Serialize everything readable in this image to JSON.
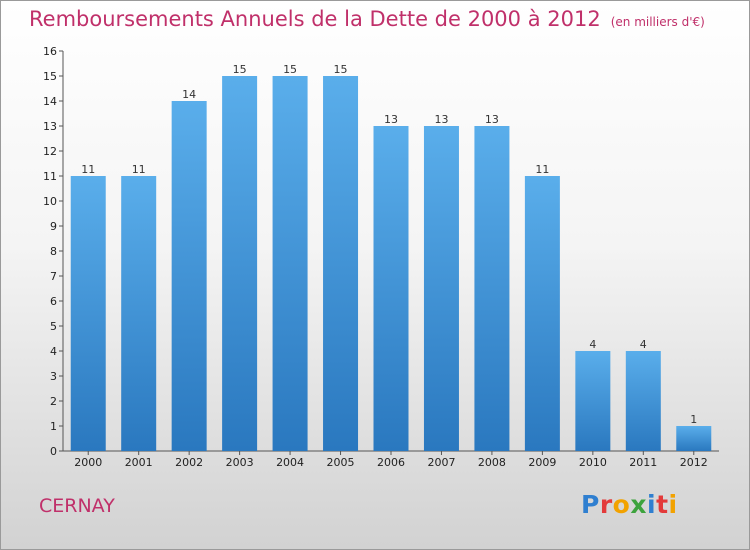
{
  "chart_data": {
    "type": "bar",
    "title": "Remboursements Annuels de la Dette de 2000 à 2012",
    "subtitle": "(en milliers d'€)",
    "categories": [
      "2000",
      "2001",
      "2002",
      "2003",
      "2004",
      "2005",
      "2006",
      "2007",
      "2008",
      "2009",
      "2010",
      "2011",
      "2012"
    ],
    "values": [
      11,
      11,
      14,
      15,
      15,
      15,
      13,
      13,
      13,
      11,
      4,
      4,
      1
    ],
    "ylim": [
      0,
      16
    ],
    "yticks": [
      0,
      1,
      2,
      3,
      4,
      5,
      6,
      7,
      8,
      9,
      10,
      11,
      12,
      13,
      14,
      15,
      16
    ],
    "grid": false,
    "bar_color": "#4a9de0"
  },
  "footer": {
    "commune": "CERNAY",
    "logo": "Proxiti"
  },
  "colors": {
    "title": "#c0306a",
    "logo_letters": [
      "#2f7fd0",
      "#e33a3a",
      "#f2a200",
      "#3da33d",
      "#2f7fd0",
      "#e33a3a",
      "#f2a200"
    ]
  }
}
